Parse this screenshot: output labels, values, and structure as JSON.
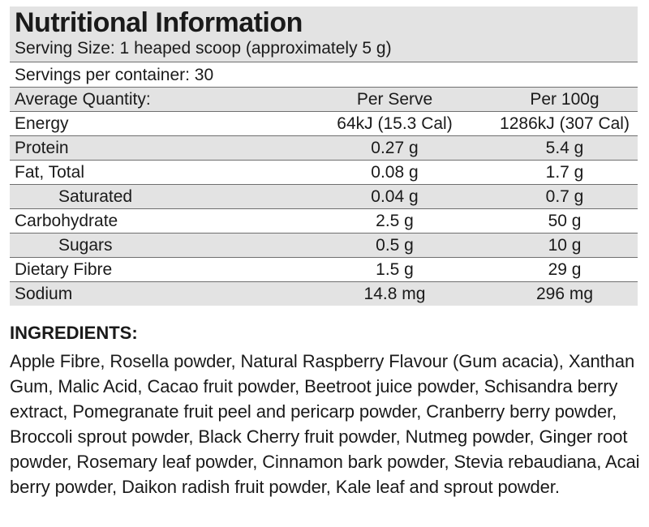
{
  "panel": {
    "title": "Nutritional Information",
    "serving_size": "Serving Size: 1 heaped scoop (approximately 5 g)",
    "servings_per_container": "Servings per container: 30",
    "columns": [
      "Average Quantity:",
      "Per Serve",
      "Per 100g"
    ],
    "rows": [
      {
        "name": "Energy",
        "per_serve": "64kJ (15.3 Cal)",
        "per_100g": "1286kJ (307 Cal)"
      },
      {
        "name": "Protein",
        "per_serve": "0.27 g",
        "per_100g": "5.4 g"
      },
      {
        "name": "Fat, Total",
        "per_serve": "0.08 g",
        "per_100g": "1.7 g"
      },
      {
        "name": "Saturated",
        "per_serve": "0.04 g",
        "per_100g": "0.7 g"
      },
      {
        "name": "Carbohydrate",
        "per_serve": "2.5 g",
        "per_100g": "50 g"
      },
      {
        "name": "Sugars",
        "per_serve": "0.5 g",
        "per_100g": "10 g"
      },
      {
        "name": "Dietary Fibre",
        "per_serve": "1.5 g",
        "per_100g": "29 g"
      },
      {
        "name": "Sodium",
        "per_serve": "14.8 mg",
        "per_100g": "296 mg"
      }
    ]
  },
  "ingredients": {
    "heading": "INGREDIENTS:",
    "text": "Apple Fibre, Rosella powder, Natural Raspberry Flavour (Gum acacia), Xanthan Gum, Malic Acid, Cacao fruit powder, Beetroot juice powder, Schisandra berry extract, Pomegranate fruit peel and pericarp powder, Cranberry berry powder, Broccoli sprout powder, Black Cherry fruit powder, Nutmeg powder, Ginger root powder, Rosemary leaf powder, Cinnamon bark powder, Stevia rebaudiana, Acai berry powder, Daikon radish fruit powder, Kale leaf and sprout powder."
  },
  "colors": {
    "shade": "#e3e3e3",
    "rule": "#6f6f6f",
    "text": "#1a1a1a"
  }
}
